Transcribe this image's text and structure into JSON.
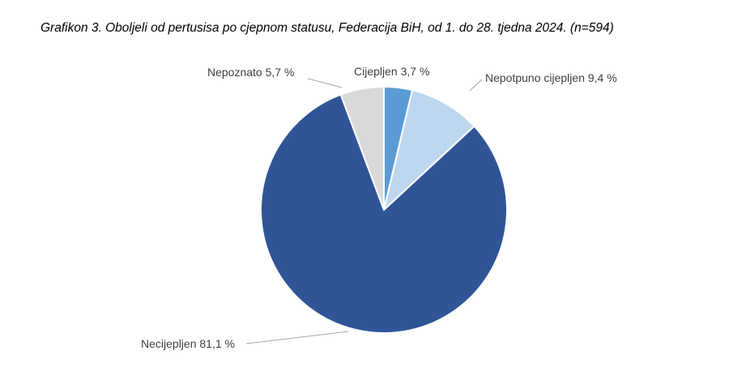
{
  "chart_data": {
    "type": "pie",
    "title": "Grafikon 3. Oboljeli od pertusisa po cjepnom statusu, Federacija BiH, od 1. do 28. tjedna 2024. (n=594)",
    "legend": "none",
    "slices": [
      {
        "name": "Cijepljen",
        "value": 3.7,
        "label": "Cijepljen 3,7 %",
        "color": "#5b9bd5"
      },
      {
        "name": "Nepotpuno cijepljen",
        "value": 9.4,
        "label": "Nepotpuno cijepljen 9,4 %",
        "color": "#bdd7ee"
      },
      {
        "name": "Necijepljen",
        "value": 81.1,
        "label": "Necijepljen 81,1 %",
        "color": "#2f5597"
      },
      {
        "name": "Nepoznato",
        "value": 5.7,
        "label": "Nepoznato 5,7 %",
        "color": "#d9d9d9"
      }
    ]
  }
}
